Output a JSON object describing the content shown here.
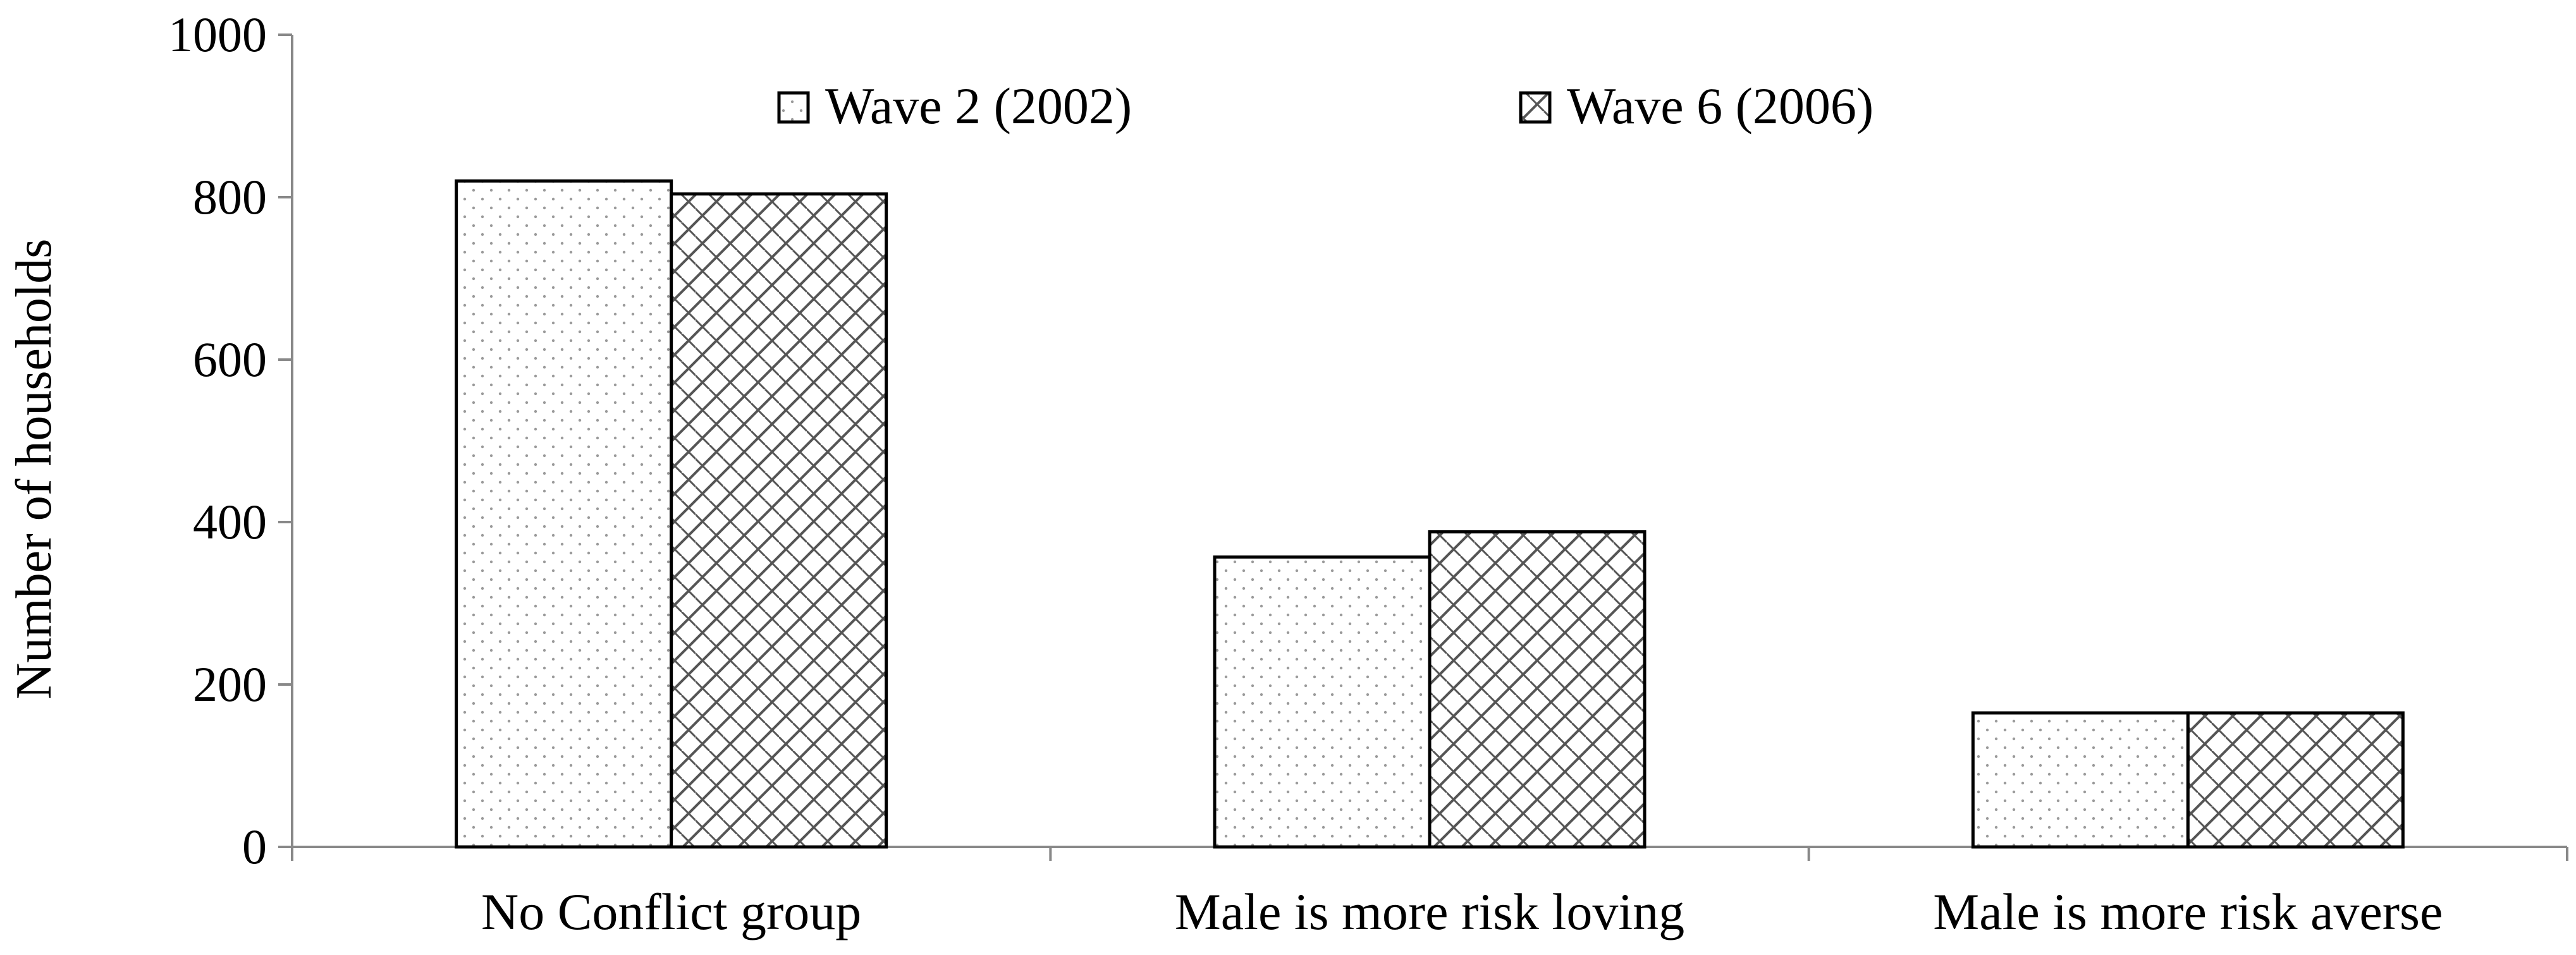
{
  "chart_data": {
    "type": "bar",
    "title": "",
    "xlabel": "",
    "ylabel": "Number of households",
    "ylim": [
      0,
      1000
    ],
    "yticks": [
      0,
      200,
      400,
      600,
      800,
      1000
    ],
    "grid": false,
    "legend_position": "top-center",
    "categories": [
      "No Conflict group",
      "Male is more risk loving",
      "Male is more risk averse"
    ],
    "series": [
      {
        "name": "Wave 2 (2002)",
        "pattern": "dots",
        "values": [
          820,
          357,
          165
        ]
      },
      {
        "name": "Wave 6 (2006)",
        "pattern": "diagonal-crosshatch",
        "values": [
          804,
          388,
          165
        ]
      }
    ],
    "colors": {
      "bar_fill": "#ffffff",
      "bar_stroke": "#000000",
      "axis": "#888888",
      "pattern": "#7a7a7a"
    }
  }
}
